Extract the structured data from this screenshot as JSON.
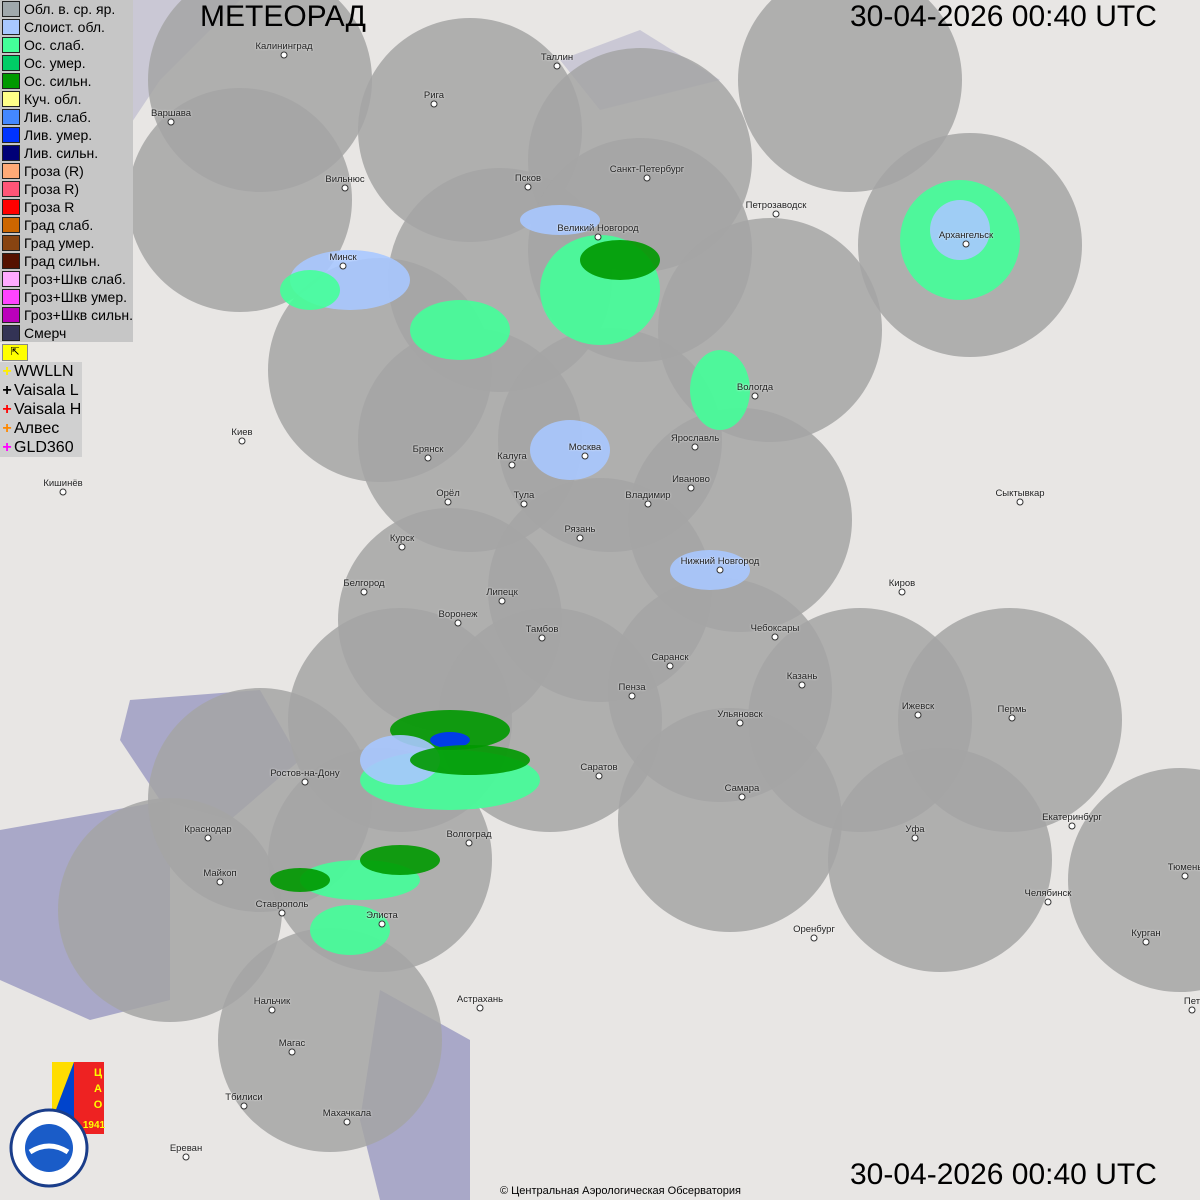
{
  "header": {
    "title": "МЕТЕОРАД",
    "timestamp": "30-04-2026  00:40 UTC"
  },
  "legend": [
    {
      "label": "Обл. в. ср. яр.",
      "color": "#a0a8ac"
    },
    {
      "label": "Слоист. обл.",
      "color": "#a8c8ff"
    },
    {
      "label": "Ос. слаб.",
      "color": "#44ff99"
    },
    {
      "label": "Ос. умер.",
      "color": "#00cc66"
    },
    {
      "label": "Ос. сильн.",
      "color": "#009900"
    },
    {
      "label": "Куч. обл.",
      "color": "#ffff88"
    },
    {
      "label": "Лив. слаб.",
      "color": "#4488ff"
    },
    {
      "label": "Лив. умер.",
      "color": "#0033ff"
    },
    {
      "label": "Лив. сильн.",
      "color": "#000077"
    },
    {
      "label": "Гроза (R)",
      "color": "#ffaa77"
    },
    {
      "label": "Гроза R)",
      "color": "#ff5577"
    },
    {
      "label": "Гроза R",
      "color": "#ff0000"
    },
    {
      "label": "Град слаб.",
      "color": "#cc6600"
    },
    {
      "label": "Град умер.",
      "color": "#884411"
    },
    {
      "label": "Град сильн.",
      "color": "#551100"
    },
    {
      "label": "Гроз+Шкв слаб.",
      "color": "#ffaaff"
    },
    {
      "label": "Гроз+Шкв умер.",
      "color": "#ff44ff"
    },
    {
      "label": "Гроз+Шкв сильн.",
      "color": "#bb00bb"
    },
    {
      "label": "Смерч",
      "color": "#333355"
    }
  ],
  "flag_icon": "flag-icon",
  "lightning": [
    {
      "label": "WWLLN",
      "color": "#ffee00"
    },
    {
      "label": "Vaisala L",
      "color": "#000000"
    },
    {
      "label": "Vaisala H",
      "color": "#ff0000"
    },
    {
      "label": "Алвес",
      "color": "#ff8800"
    },
    {
      "label": "GLD360",
      "color": "#ff00ff"
    }
  ],
  "cities": [
    "Калининград",
    "Таллин",
    "Рига",
    "Варшава",
    "Вильнюс",
    "Псков",
    "Санкт-Петербург",
    "Петрозаводск",
    "Архангельск",
    "Великий Новгород",
    "Минск",
    "Вологда",
    "Киев",
    "Брянск",
    "Калуга",
    "Москва",
    "Ярославль",
    "Иваново",
    "Кишинёв",
    "Орёл",
    "Тула",
    "Владимир",
    "Сыктывкар",
    "Рязань",
    "Курск",
    "Нижний Новгород",
    "Белгород",
    "Липецк",
    "Киров",
    "Воронеж",
    "Тамбов",
    "Чебоксары",
    "Саранск",
    "Казань",
    "Пенза",
    "Ижевск",
    "Пермь",
    "Ульяновск",
    "Саратов",
    "Ростов-на-Дону",
    "Самара",
    "Краснодар",
    "Волгоград",
    "Уфа",
    "Екатеринбург",
    "Майкоп",
    "Тюмень",
    "Челябинск",
    "Ставрополь",
    "Элиста",
    "Оренбург",
    "Курган",
    "Астрахань",
    "Пет",
    "Нальчик",
    "Магас",
    "Тбилиси",
    "Махачкала",
    "Ереван"
  ],
  "logos": {
    "rosgidromet": "РОСГИДРОМЕТ ROSHYDROMET",
    "cao": "ЦАО 1941"
  },
  "copyright": "© Центральная Аэрологическая Обсерватория"
}
